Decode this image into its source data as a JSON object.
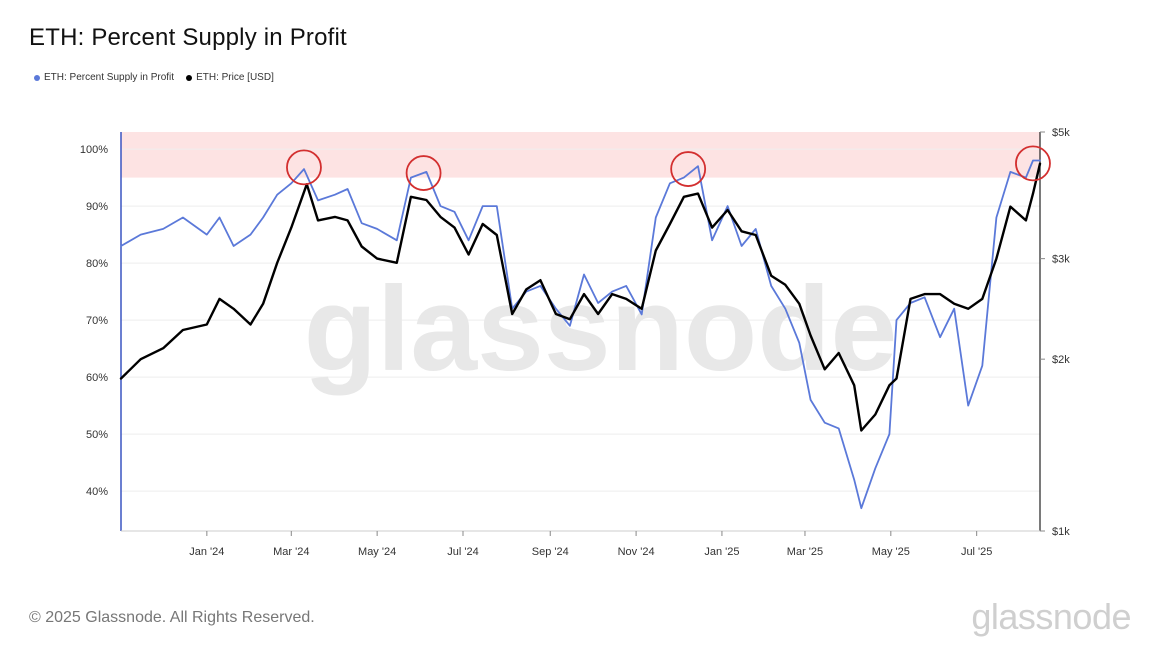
{
  "page": {
    "title": "ETH: Percent Supply in Profit",
    "footer": "© 2025 Glassnode. All Rights Reserved.",
    "brand": "glassnode",
    "watermark": "glassnode"
  },
  "colors": {
    "supply": "#5b79d9",
    "price": "#000000",
    "highlight_band": "#fde3e3",
    "circle": "#d32f2f",
    "grid": "#eeeeee",
    "axis": "#3a55c2"
  },
  "chart_data": {
    "type": "line",
    "title": "ETH: Percent Supply in Profit",
    "legend": [
      {
        "name": "ETH: Percent Supply in Profit",
        "color": "#5b79d9"
      },
      {
        "name": "ETH: Price [USD]",
        "color": "#000000"
      }
    ],
    "legend_position": "top-left",
    "grid": true,
    "x_axis": {
      "range": [
        "2023-11-01",
        "2025-08-15"
      ],
      "ticks": [
        {
          "date": "2024-01-01",
          "label": "Jan '24"
        },
        {
          "date": "2024-03-01",
          "label": "Mar '24"
        },
        {
          "date": "2024-05-01",
          "label": "May '24"
        },
        {
          "date": "2024-07-01",
          "label": "Jul '24"
        },
        {
          "date": "2024-09-01",
          "label": "Sep '24"
        },
        {
          "date": "2024-11-01",
          "label": "Nov '24"
        },
        {
          "date": "2025-01-01",
          "label": "Jan '25"
        },
        {
          "date": "2025-03-01",
          "label": "Mar '25"
        },
        {
          "date": "2025-05-01",
          "label": "May '25"
        },
        {
          "date": "2025-07-01",
          "label": "Jul '25"
        }
      ]
    },
    "y_left": {
      "range": [
        33,
        103
      ],
      "ticks": [
        {
          "value": 40,
          "label": "40%"
        },
        {
          "value": 50,
          "label": "50%"
        },
        {
          "value": 60,
          "label": "60%"
        },
        {
          "value": 70,
          "label": "70%"
        },
        {
          "value": 80,
          "label": "80%"
        },
        {
          "value": 90,
          "label": "90%"
        },
        {
          "value": 100,
          "label": "100%"
        }
      ]
    },
    "y_right": {
      "scale": "log",
      "range": [
        1000,
        5000
      ],
      "ticks": [
        {
          "value": 1000,
          "label": "$1k"
        },
        {
          "value": 2000,
          "label": "$2k"
        },
        {
          "value": 3000,
          "label": "$3k"
        },
        {
          "value": 5000,
          "label": "$5k"
        }
      ]
    },
    "highlight_band": {
      "from": 95,
      "to": 103
    },
    "highlight_circles": [
      {
        "date": "2024-03-10",
        "value": 96.8
      },
      {
        "date": "2024-06-03",
        "value": 95.8
      },
      {
        "date": "2024-12-08",
        "value": 96.5
      },
      {
        "date": "2025-08-10",
        "value": 97.5
      }
    ],
    "series": [
      {
        "name": "ETH: Percent Supply in Profit",
        "axis": "left",
        "color": "#5b79d9",
        "points": [
          [
            "2023-11-01",
            83
          ],
          [
            "2023-11-15",
            85
          ],
          [
            "2023-12-01",
            86
          ],
          [
            "2023-12-15",
            88
          ],
          [
            "2024-01-01",
            85
          ],
          [
            "2024-01-10",
            88
          ],
          [
            "2024-01-20",
            83
          ],
          [
            "2024-02-01",
            85
          ],
          [
            "2024-02-10",
            88
          ],
          [
            "2024-02-20",
            92
          ],
          [
            "2024-03-01",
            94
          ],
          [
            "2024-03-10",
            96.5
          ],
          [
            "2024-03-20",
            91
          ],
          [
            "2024-04-01",
            92
          ],
          [
            "2024-04-10",
            93
          ],
          [
            "2024-04-20",
            87
          ],
          [
            "2024-05-01",
            86
          ],
          [
            "2024-05-15",
            84
          ],
          [
            "2024-05-25",
            95
          ],
          [
            "2024-06-05",
            96
          ],
          [
            "2024-06-15",
            90
          ],
          [
            "2024-06-25",
            89
          ],
          [
            "2024-07-05",
            84
          ],
          [
            "2024-07-15",
            90
          ],
          [
            "2024-07-25",
            90
          ],
          [
            "2024-08-05",
            72
          ],
          [
            "2024-08-15",
            75
          ],
          [
            "2024-08-25",
            76
          ],
          [
            "2024-09-05",
            72
          ],
          [
            "2024-09-15",
            69
          ],
          [
            "2024-09-25",
            78
          ],
          [
            "2024-10-05",
            73
          ],
          [
            "2024-10-15",
            75
          ],
          [
            "2024-10-25",
            76
          ],
          [
            "2024-11-05",
            71
          ],
          [
            "2024-11-15",
            88
          ],
          [
            "2024-11-25",
            94
          ],
          [
            "2024-12-05",
            95
          ],
          [
            "2024-12-15",
            97
          ],
          [
            "2024-12-25",
            84
          ],
          [
            "2025-01-05",
            90
          ],
          [
            "2025-01-15",
            83
          ],
          [
            "2025-01-25",
            86
          ],
          [
            "2025-02-05",
            76
          ],
          [
            "2025-02-15",
            72
          ],
          [
            "2025-02-25",
            66
          ],
          [
            "2025-03-05",
            56
          ],
          [
            "2025-03-15",
            52
          ],
          [
            "2025-03-25",
            51
          ],
          [
            "2025-04-05",
            42
          ],
          [
            "2025-04-10",
            37
          ],
          [
            "2025-04-20",
            44
          ],
          [
            "2025-04-30",
            50
          ],
          [
            "2025-05-05",
            70
          ],
          [
            "2025-05-15",
            73
          ],
          [
            "2025-05-25",
            74
          ],
          [
            "2025-06-05",
            67
          ],
          [
            "2025-06-15",
            72
          ],
          [
            "2025-06-25",
            55
          ],
          [
            "2025-07-05",
            62
          ],
          [
            "2025-07-15",
            88
          ],
          [
            "2025-07-25",
            96
          ],
          [
            "2025-08-05",
            95
          ],
          [
            "2025-08-10",
            98
          ],
          [
            "2025-08-15",
            98
          ]
        ]
      },
      {
        "name": "ETH: Price [USD]",
        "axis": "right",
        "color": "#000000",
        "points": [
          [
            "2023-11-01",
            1850
          ],
          [
            "2023-11-15",
            2000
          ],
          [
            "2023-12-01",
            2090
          ],
          [
            "2023-12-15",
            2250
          ],
          [
            "2024-01-01",
            2300
          ],
          [
            "2024-01-10",
            2550
          ],
          [
            "2024-01-20",
            2450
          ],
          [
            "2024-02-01",
            2300
          ],
          [
            "2024-02-10",
            2500
          ],
          [
            "2024-02-20",
            2950
          ],
          [
            "2024-03-01",
            3400
          ],
          [
            "2024-03-12",
            4050
          ],
          [
            "2024-03-20",
            3500
          ],
          [
            "2024-04-01",
            3550
          ],
          [
            "2024-04-10",
            3500
          ],
          [
            "2024-04-20",
            3150
          ],
          [
            "2024-05-01",
            3000
          ],
          [
            "2024-05-15",
            2950
          ],
          [
            "2024-05-25",
            3850
          ],
          [
            "2024-06-05",
            3800
          ],
          [
            "2024-06-15",
            3550
          ],
          [
            "2024-06-25",
            3400
          ],
          [
            "2024-07-05",
            3050
          ],
          [
            "2024-07-15",
            3450
          ],
          [
            "2024-07-25",
            3300
          ],
          [
            "2024-08-05",
            2400
          ],
          [
            "2024-08-15",
            2650
          ],
          [
            "2024-08-25",
            2750
          ],
          [
            "2024-09-05",
            2400
          ],
          [
            "2024-09-15",
            2350
          ],
          [
            "2024-09-25",
            2600
          ],
          [
            "2024-10-05",
            2400
          ],
          [
            "2024-10-15",
            2600
          ],
          [
            "2024-10-25",
            2550
          ],
          [
            "2024-11-05",
            2450
          ],
          [
            "2024-11-15",
            3100
          ],
          [
            "2024-11-25",
            3450
          ],
          [
            "2024-12-05",
            3850
          ],
          [
            "2024-12-15",
            3900
          ],
          [
            "2024-12-25",
            3400
          ],
          [
            "2025-01-05",
            3650
          ],
          [
            "2025-01-15",
            3350
          ],
          [
            "2025-01-25",
            3300
          ],
          [
            "2025-02-05",
            2800
          ],
          [
            "2025-02-15",
            2700
          ],
          [
            "2025-02-25",
            2500
          ],
          [
            "2025-03-05",
            2200
          ],
          [
            "2025-03-15",
            1920
          ],
          [
            "2025-03-25",
            2050
          ],
          [
            "2025-04-05",
            1800
          ],
          [
            "2025-04-10",
            1500
          ],
          [
            "2025-04-20",
            1600
          ],
          [
            "2025-04-30",
            1800
          ],
          [
            "2025-05-05",
            1850
          ],
          [
            "2025-05-15",
            2550
          ],
          [
            "2025-05-25",
            2600
          ],
          [
            "2025-06-05",
            2600
          ],
          [
            "2025-06-15",
            2500
          ],
          [
            "2025-06-25",
            2450
          ],
          [
            "2025-07-05",
            2550
          ],
          [
            "2025-07-15",
            3000
          ],
          [
            "2025-07-25",
            3700
          ],
          [
            "2025-08-05",
            3500
          ],
          [
            "2025-08-10",
            3900
          ],
          [
            "2025-08-15",
            4400
          ]
        ]
      }
    ]
  }
}
